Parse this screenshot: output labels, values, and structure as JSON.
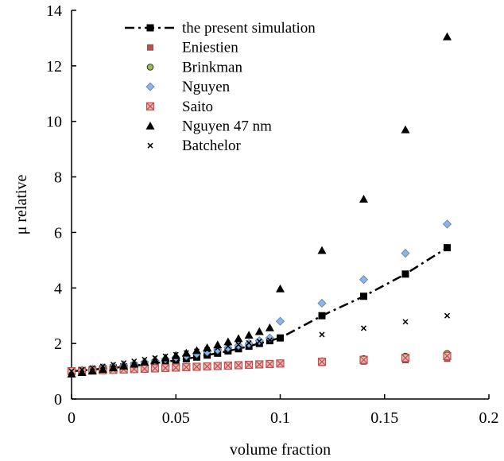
{
  "chart_data": {
    "type": "scatter",
    "title": "",
    "xlabel": "volume fraction",
    "ylabel": "μ relative",
    "xlim": [
      0,
      0.2
    ],
    "ylim": [
      0,
      14
    ],
    "x_ticks": [
      0,
      0.05,
      0.1,
      0.15,
      0.2
    ],
    "x_tick_labels": [
      "0",
      "0.05",
      "0.1",
      "0.15",
      "0.2"
    ],
    "y_ticks": [
      0,
      2,
      4,
      6,
      8,
      10,
      12,
      14
    ],
    "y_tick_labels": [
      "0",
      "2",
      "4",
      "6",
      "8",
      "10",
      "12",
      "14"
    ],
    "grid": false,
    "legend_position": "top-left",
    "series": [
      {
        "name": "the present simulation",
        "marker": "square",
        "line": "dash-dot",
        "color": "#000000",
        "x": [
          0,
          0.005,
          0.01,
          0.015,
          0.02,
          0.025,
          0.03,
          0.035,
          0.04,
          0.045,
          0.05,
          0.055,
          0.06,
          0.065,
          0.07,
          0.075,
          0.08,
          0.085,
          0.09,
          0.095,
          0.1,
          0.12,
          0.14,
          0.16,
          0.18
        ],
        "y": [
          1.0,
          1.03,
          1.06,
          1.09,
          1.12,
          1.16,
          1.2,
          1.24,
          1.29,
          1.34,
          1.39,
          1.45,
          1.51,
          1.58,
          1.65,
          1.73,
          1.81,
          1.9,
          2.0,
          2.1,
          2.2,
          3.0,
          3.7,
          4.5,
          5.45
        ]
      },
      {
        "name": "Eniestien",
        "marker": "square-small",
        "line": "none",
        "color": "#c0504d",
        "x": [
          0,
          0.005,
          0.01,
          0.015,
          0.02,
          0.025,
          0.03,
          0.035,
          0.04,
          0.045,
          0.05,
          0.055,
          0.06,
          0.065,
          0.07,
          0.075,
          0.08,
          0.085,
          0.09,
          0.095,
          0.1,
          0.12,
          0.14,
          0.16,
          0.18
        ],
        "y": [
          1.0,
          1.0125,
          1.025,
          1.0375,
          1.05,
          1.0625,
          1.075,
          1.0875,
          1.1,
          1.1125,
          1.125,
          1.1375,
          1.15,
          1.1625,
          1.175,
          1.1875,
          1.2,
          1.2125,
          1.225,
          1.2375,
          1.25,
          1.3,
          1.35,
          1.4,
          1.45
        ]
      },
      {
        "name": "Brinkman",
        "marker": "circle",
        "line": "none",
        "color": "#9bbb59",
        "x": [
          0,
          0.005,
          0.01,
          0.015,
          0.02,
          0.025,
          0.03,
          0.035,
          0.04,
          0.045,
          0.05,
          0.055,
          0.06,
          0.065,
          0.07,
          0.075,
          0.08,
          0.085,
          0.09,
          0.095,
          0.1,
          0.12,
          0.14,
          0.16,
          0.18
        ],
        "y": [
          1.0,
          1.013,
          1.025,
          1.039,
          1.052,
          1.065,
          1.079,
          1.093,
          1.107,
          1.122,
          1.137,
          1.152,
          1.167,
          1.183,
          1.199,
          1.215,
          1.232,
          1.249,
          1.267,
          1.285,
          1.302,
          1.377,
          1.457,
          1.545,
          1.641
        ]
      },
      {
        "name": "Nguyen",
        "marker": "diamond",
        "line": "none",
        "color": "#8eb4e3",
        "x": [
          0,
          0.005,
          0.01,
          0.015,
          0.02,
          0.025,
          0.03,
          0.035,
          0.04,
          0.045,
          0.05,
          0.055,
          0.06,
          0.065,
          0.07,
          0.075,
          0.08,
          0.085,
          0.09,
          0.095,
          0.1,
          0.12,
          0.14,
          0.16,
          0.18
        ],
        "y": [
          1.0,
          1.04,
          1.08,
          1.13,
          1.17,
          1.22,
          1.27,
          1.33,
          1.38,
          1.44,
          1.5,
          1.56,
          1.63,
          1.7,
          1.77,
          1.85,
          1.93,
          2.0,
          2.1,
          2.2,
          2.8,
          3.45,
          4.3,
          5.25,
          6.3
        ]
      },
      {
        "name": "Saito",
        "marker": "square-x",
        "line": "none",
        "color": "#c0504d",
        "x": [
          0,
          0.005,
          0.01,
          0.015,
          0.02,
          0.025,
          0.03,
          0.035,
          0.04,
          0.045,
          0.05,
          0.055,
          0.06,
          0.065,
          0.07,
          0.075,
          0.08,
          0.085,
          0.09,
          0.095,
          0.1,
          0.12,
          0.14,
          0.16,
          0.18
        ],
        "y": [
          1.0,
          1.013,
          1.025,
          1.038,
          1.051,
          1.064,
          1.078,
          1.091,
          1.104,
          1.118,
          1.132,
          1.146,
          1.16,
          1.174,
          1.188,
          1.203,
          1.217,
          1.232,
          1.247,
          1.262,
          1.28,
          1.34,
          1.41,
          1.48,
          1.55
        ]
      },
      {
        "name": "Nguyen 47 nm",
        "marker": "triangle",
        "line": "none",
        "color": "#000000",
        "x": [
          0,
          0.005,
          0.01,
          0.015,
          0.02,
          0.025,
          0.03,
          0.035,
          0.04,
          0.045,
          0.05,
          0.055,
          0.06,
          0.065,
          0.07,
          0.075,
          0.08,
          0.085,
          0.09,
          0.095,
          0.1,
          0.12,
          0.14,
          0.16,
          0.18
        ],
        "y": [
          0.904,
          0.955,
          1.009,
          1.066,
          1.126,
          1.19,
          1.257,
          1.328,
          1.403,
          1.482,
          1.566,
          1.654,
          1.748,
          1.846,
          1.951,
          2.061,
          2.177,
          2.3,
          2.43,
          2.567,
          3.97,
          5.35,
          7.2,
          9.7,
          13.05
        ]
      },
      {
        "name": "Batchelor",
        "marker": "x",
        "line": "none",
        "color": "#000000",
        "x": [
          0,
          0.005,
          0.01,
          0.015,
          0.02,
          0.025,
          0.03,
          0.035,
          0.04,
          0.045,
          0.05,
          0.055,
          0.06,
          0.065,
          0.07,
          0.075,
          0.08,
          0.085,
          0.09,
          0.095,
          0.1,
          0.12,
          0.14,
          0.16,
          0.18
        ],
        "y": [
          1.0,
          1.06,
          1.12,
          1.18,
          1.24,
          1.3,
          1.36,
          1.42,
          1.48,
          1.54,
          1.6,
          1.66,
          1.72,
          1.78,
          1.84,
          1.9,
          1.96,
          2.02,
          2.08,
          2.12,
          2.2,
          2.32,
          2.55,
          2.78,
          3.0
        ]
      }
    ]
  }
}
